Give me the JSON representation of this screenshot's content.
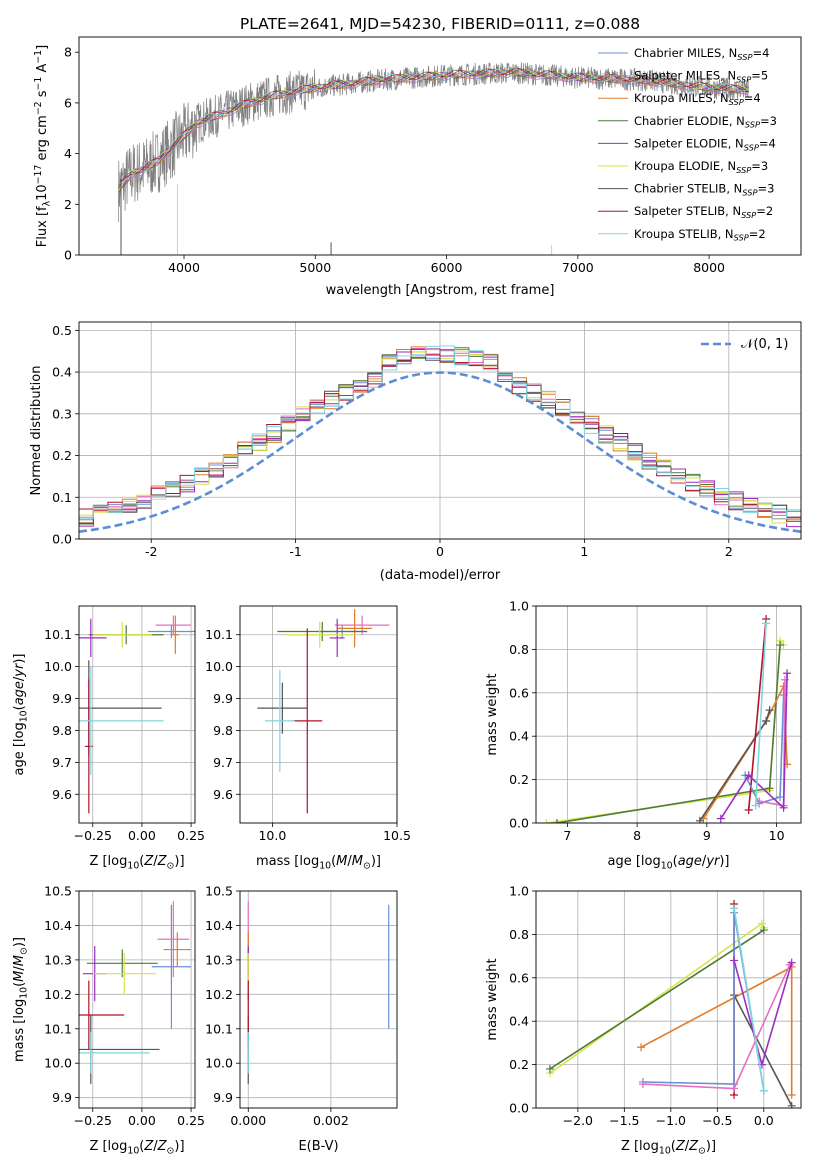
{
  "figure_title": "PLATE=2641, MJD=54230, FIBERID=0111, z=0.088",
  "colors": {
    "chabrier_miles": "#6a8fd8",
    "salpeter_miles": "#e66fbf",
    "kroupa_miles": "#e07b2a",
    "chabrier_elodie": "#4e7a3a",
    "salpeter_elodie": "#9b2fc0",
    "kroupa_elodie": "#d7e34a",
    "chabrier_stelib": "#555555",
    "salpeter_stelib": "#b0122a",
    "kroupa_stelib": "#7fd6de",
    "data": "#808080",
    "normal_curve": "#5b8ed6"
  },
  "chart_data": [
    {
      "id": "spectrum",
      "type": "line",
      "title": "PLATE=2641, MJD=54230, FIBERID=0111, z=0.088",
      "xlabel": "wavelength [Angstrom, rest frame]",
      "ylabel": "Flux [fλ10⁻¹⁷ erg cm⁻² s⁻¹ A⁻¹]",
      "xlim": [
        3200,
        8700
      ],
      "ylim": [
        0,
        8.6
      ],
      "xticks": [
        4000,
        5000,
        6000,
        7000,
        8000
      ],
      "yticks": [
        0,
        2,
        4,
        6,
        8
      ],
      "legend_position": "right",
      "legend": [
        {
          "label": "Chabrier MILES, N",
          "sub": "SSP",
          "tail": "=4"
        },
        {
          "label": "Salpeter MILES, N",
          "sub": "SSP",
          "tail": "=5"
        },
        {
          "label": "Kroupa MILES, N",
          "sub": "SSP",
          "tail": "=4"
        },
        {
          "label": "Chabrier ELODIE, N",
          "sub": "SSP",
          "tail": "=3"
        },
        {
          "label": "Salpeter ELODIE, N",
          "sub": "SSP",
          "tail": "=4"
        },
        {
          "label": "Kroupa ELODIE, N",
          "sub": "SSP",
          "tail": "=3"
        },
        {
          "label": "Chabrier STELIB, N",
          "sub": "SSP",
          "tail": "=3"
        },
        {
          "label": "Salpeter STELIB, N",
          "sub": "SSP",
          "tail": "=2"
        },
        {
          "label": "Kroupa STELIB, N",
          "sub": "SSP",
          "tail": "=2"
        }
      ],
      "continuum": [
        [
          3500,
          2.6
        ],
        [
          3600,
          3.2
        ],
        [
          3700,
          3.4
        ],
        [
          3800,
          3.7
        ],
        [
          3900,
          4.2
        ],
        [
          4000,
          4.7
        ],
        [
          4100,
          5.2
        ],
        [
          4300,
          5.6
        ],
        [
          4500,
          6.0
        ],
        [
          4700,
          6.3
        ],
        [
          5000,
          6.6
        ],
        [
          5500,
          6.9
        ],
        [
          6000,
          7.1
        ],
        [
          6500,
          7.2
        ],
        [
          7000,
          7.0
        ],
        [
          7500,
          6.9
        ],
        [
          8000,
          6.6
        ],
        [
          8300,
          6.5
        ]
      ]
    },
    {
      "id": "residuals",
      "type": "line",
      "xlabel": "(data-model)/error",
      "ylabel": "Normed distribution",
      "xlim": [
        -2.5,
        2.5
      ],
      "ylim": [
        0,
        0.52
      ],
      "xticks": [
        -2,
        -1,
        0,
        1,
        2
      ],
      "yticks": [
        0.0,
        0.1,
        0.2,
        0.3,
        0.4,
        0.5
      ],
      "grid": true,
      "legend_position": "top-right",
      "normal_label": "𝒩(0, 1)"
    },
    {
      "id": "age_vs_Z",
      "type": "scatter",
      "xlabel": "Z [log₁₀(Z/Z⊙)]",
      "ylabel": "age  [log₁₀(age/yr)]",
      "xlim": [
        -0.32,
        0.27
      ],
      "ylim": [
        9.51,
        10.19
      ],
      "xticks": [
        -0.25,
        0.0,
        0.25
      ],
      "xticklabels": [
        "−0.25",
        "0.00",
        "0.25"
      ],
      "yticks": [
        9.6,
        9.7,
        9.8,
        9.9,
        10.0,
        10.1
      ],
      "grid": true,
      "points": [
        {
          "model": "chabrier_miles",
          "x": 0.15,
          "y": 10.11,
          "xerr": 0.12,
          "yerr": 0.02
        },
        {
          "model": "salpeter_miles",
          "x": 0.16,
          "y": 10.13,
          "xerr": 0.09,
          "yerr": 0.03
        },
        {
          "model": "kroupa_miles",
          "x": 0.17,
          "y": 10.1,
          "xerr": 0.02,
          "yerr": 0.06
        },
        {
          "model": "chabrier_elodie",
          "x": -0.08,
          "y": 10.1,
          "xerr": 0.19,
          "yerr": 0.03
        },
        {
          "model": "salpeter_elodie",
          "x": -0.26,
          "y": 10.09,
          "xerr": 0.08,
          "yerr": 0.06
        },
        {
          "model": "kroupa_elodie",
          "x": -0.1,
          "y": 10.1,
          "xerr": 0.15,
          "yerr": 0.04
        },
        {
          "model": "chabrier_stelib",
          "x": -0.27,
          "y": 9.87,
          "xerr": 0.37,
          "yerr": 0.15
        },
        {
          "model": "salpeter_stelib",
          "x": -0.27,
          "y": 9.75,
          "xerr": 0.02,
          "yerr": 0.21
        },
        {
          "model": "kroupa_stelib",
          "x": -0.26,
          "y": 9.83,
          "xerr": 0.37,
          "yerr": 0.17
        }
      ]
    },
    {
      "id": "age_vs_mass",
      "type": "scatter",
      "xlabel": "mass [log₁₀(M/M⊙)]",
      "xlim": [
        9.87,
        10.5
      ],
      "ylim": [
        9.51,
        10.19
      ],
      "xticks": [
        10.0,
        10.5
      ],
      "xticklabels": [
        "10.0",
        "10.5"
      ],
      "yticks": [
        9.6,
        9.7,
        9.8,
        9.9,
        10.0,
        10.1
      ],
      "grid": true,
      "points": [
        {
          "model": "chabrier_miles",
          "x": 10.28,
          "y": 10.11,
          "xerr": 0.1,
          "yerr": 0.02
        },
        {
          "model": "salpeter_miles",
          "x": 10.36,
          "y": 10.13,
          "xerr": 0.11,
          "yerr": 0.03
        },
        {
          "model": "kroupa_miles",
          "x": 10.33,
          "y": 10.12,
          "xerr": 0.07,
          "yerr": 0.06
        },
        {
          "model": "chabrier_elodie",
          "x": 10.2,
          "y": 10.11,
          "xerr": 0.18,
          "yerr": 0.03
        },
        {
          "model": "salpeter_elodie",
          "x": 10.26,
          "y": 10.09,
          "xerr": 0.03,
          "yerr": 0.06
        },
        {
          "model": "kroupa_elodie",
          "x": 10.19,
          "y": 10.1,
          "xerr": 0.14,
          "yerr": 0.04
        },
        {
          "model": "chabrier_stelib",
          "x": 10.04,
          "y": 9.87,
          "xerr": 0.1,
          "yerr": 0.08
        },
        {
          "model": "salpeter_stelib",
          "x": 10.14,
          "y": 9.83,
          "xerr": 0.06,
          "yerr": 0.29
        },
        {
          "model": "kroupa_stelib",
          "x": 10.03,
          "y": 9.83,
          "xerr": 0.06,
          "yerr": 0.16
        }
      ]
    },
    {
      "id": "weight_vs_age",
      "type": "line",
      "xlabel": "age  [log₁₀(age/yr)]",
      "ylabel": "mass weight",
      "xlim": [
        6.55,
        10.35
      ],
      "ylim": [
        0,
        1.0
      ],
      "xticks": [
        7,
        8,
        9,
        10
      ],
      "yticks": [
        0.0,
        0.2,
        0.4,
        0.6,
        0.8,
        1.0
      ],
      "grid": true,
      "series": [
        {
          "model": "kroupa_elodie",
          "x": [
            6.7,
            9.9,
            10.05,
            10.1
          ],
          "y": [
            0.0,
            0.15,
            0.84,
            0.82
          ]
        },
        {
          "model": "chabrier_elodie",
          "x": [
            6.85,
            9.9,
            10.05
          ],
          "y": [
            0.0,
            0.16,
            0.82
          ]
        },
        {
          "model": "kroupa_miles",
          "x": [
            8.95,
            9.85,
            10.1,
            10.15
          ],
          "y": [
            0.02,
            0.47,
            0.63,
            0.27
          ]
        },
        {
          "model": "chabrier_stelib",
          "x": [
            8.9,
            9.85,
            9.9
          ],
          "y": [
            0.01,
            0.47,
            0.52
          ]
        },
        {
          "model": "salpeter_stelib",
          "x": [
            9.6,
            9.85
          ],
          "y": [
            0.06,
            0.94
          ]
        },
        {
          "model": "chabrier_miles",
          "x": [
            9.55,
            9.75,
            10.05,
            10.1
          ],
          "y": [
            0.22,
            0.09,
            0.12,
            0.59
          ]
        },
        {
          "model": "salpeter_miles",
          "x": [
            9.75,
            10.1,
            10.12
          ],
          "y": [
            0.1,
            0.08,
            0.66
          ]
        },
        {
          "model": "salpeter_elodie",
          "x": [
            9.2,
            9.6,
            10.1,
            10.15
          ],
          "y": [
            0.02,
            0.22,
            0.07,
            0.69
          ]
        },
        {
          "model": "kroupa_stelib",
          "x": [
            9.85,
            9.7
          ],
          "y": [
            0.92,
            0.08
          ]
        }
      ]
    },
    {
      "id": "mass_vs_Z",
      "type": "scatter",
      "xlabel": "Z [log₁₀(Z/Z⊙)]",
      "ylabel": "mass [log₁₀(M/M⊙)]",
      "xlim": [
        -0.32,
        0.27
      ],
      "ylim": [
        9.87,
        10.5
      ],
      "xticks": [
        -0.25,
        0.0,
        0.25
      ],
      "xticklabels": [
        "−0.25",
        "0.00",
        "0.25"
      ],
      "yticks": [
        9.9,
        10.0,
        10.1,
        10.2,
        10.3,
        10.4,
        10.5
      ],
      "grid": true,
      "points": [
        {
          "model": "chabrier_miles",
          "x": 0.15,
          "y": 10.28,
          "xerr": 0.1,
          "yerr": 0.18
        },
        {
          "model": "salpeter_miles",
          "x": 0.16,
          "y": 10.36,
          "xerr": 0.08,
          "yerr": 0.11
        },
        {
          "model": "kroupa_miles",
          "x": 0.18,
          "y": 10.33,
          "xerr": 0.07,
          "yerr": 0.05
        },
        {
          "model": "chabrier_elodie",
          "x": -0.1,
          "y": 10.29,
          "xerr": 0.18,
          "yerr": 0.04
        },
        {
          "model": "salpeter_elodie",
          "x": -0.24,
          "y": 10.26,
          "xerr": 0.06,
          "yerr": 0.08
        },
        {
          "model": "kroupa_elodie",
          "x": -0.09,
          "y": 10.26,
          "xerr": 0.16,
          "yerr": 0.06
        },
        {
          "model": "chabrier_stelib",
          "x": -0.26,
          "y": 10.04,
          "xerr": 0.35,
          "yerr": 0.1
        },
        {
          "model": "salpeter_stelib",
          "x": -0.27,
          "y": 10.14,
          "xerr": 0.18,
          "yerr": 0.1
        },
        {
          "model": "kroupa_stelib",
          "x": -0.26,
          "y": 10.03,
          "xerr": 0.3,
          "yerr": 0.06
        }
      ]
    },
    {
      "id": "mass_vs_ebv",
      "type": "scatter",
      "xlabel": "E(B-V)",
      "xlim": [
        -0.0002,
        0.0036
      ],
      "ylim": [
        9.87,
        10.5
      ],
      "xticks": [
        0.0,
        0.002
      ],
      "xticklabels": [
        "0.000",
        "0.002"
      ],
      "yticks": [
        9.9,
        10.0,
        10.1,
        10.2,
        10.3,
        10.4,
        10.5
      ],
      "grid": true,
      "points": [
        {
          "model": "chabrier_miles",
          "x": 0.0034,
          "y": 10.28,
          "xerr": 0.0,
          "yerr": 0.18
        },
        {
          "model": "salpeter_miles",
          "x": 0.0,
          "y": 10.36,
          "xerr": 0.0,
          "yerr": 0.11
        },
        {
          "model": "kroupa_miles",
          "x": 0.0,
          "y": 10.33,
          "xerr": 0.0,
          "yerr": 0.05
        },
        {
          "model": "chabrier_elodie",
          "x": 0.0,
          "y": 10.29,
          "xerr": 0.0,
          "yerr": 0.04
        },
        {
          "model": "salpeter_elodie",
          "x": 0.0,
          "y": 10.26,
          "xerr": 0.0,
          "yerr": 0.08
        },
        {
          "model": "kroupa_elodie",
          "x": 0.0,
          "y": 10.26,
          "xerr": 0.0,
          "yerr": 0.06
        },
        {
          "model": "chabrier_stelib",
          "x": 0.0,
          "y": 10.04,
          "xerr": 0.0,
          "yerr": 0.1
        },
        {
          "model": "salpeter_stelib",
          "x": 0.0,
          "y": 10.14,
          "xerr": 0.0,
          "yerr": 0.1
        },
        {
          "model": "kroupa_stelib",
          "x": 0.0,
          "y": 10.03,
          "xerr": 0.0,
          "yerr": 0.06
        }
      ]
    },
    {
      "id": "weight_vs_Z",
      "type": "line",
      "xlabel": "Z [log₁₀(Z/Z⊙)]",
      "ylabel": "mass weight",
      "xlim": [
        -2.45,
        0.4
      ],
      "ylim": [
        0,
        1.0
      ],
      "xticks": [
        -2.0,
        -1.5,
        -1.0,
        -0.5,
        0.0
      ],
      "xticklabels": [
        "−2.0",
        "−1.5",
        "−1.0",
        "−0.5",
        "0.0"
      ],
      "yticks": [
        0.0,
        0.2,
        0.4,
        0.6,
        0.8,
        1.0
      ],
      "grid": true,
      "series": [
        {
          "model": "kroupa_elodie",
          "x": [
            -2.3,
            -0.02,
            0.0
          ],
          "y": [
            0.16,
            0.85,
            0.83
          ]
        },
        {
          "model": "chabrier_elodie",
          "x": [
            -2.3,
            0.0
          ],
          "y": [
            0.18,
            0.82
          ]
        },
        {
          "model": "kroupa_miles",
          "x": [
            -1.32,
            0.3,
            0.3
          ],
          "y": [
            0.28,
            0.65,
            0.06
          ]
        },
        {
          "model": "chabrier_stelib",
          "x": [
            -0.32,
            0.3
          ],
          "y": [
            0.52,
            0.01
          ]
        },
        {
          "model": "salpeter_stelib",
          "x": [
            -0.32,
            -0.32
          ],
          "y": [
            0.94,
            0.06
          ]
        },
        {
          "model": "chabrier_miles",
          "x": [
            -1.3,
            -0.32,
            -0.32,
            0.0
          ],
          "y": [
            0.12,
            0.11,
            0.9,
            0.08
          ]
        },
        {
          "model": "salpeter_miles",
          "x": [
            -1.3,
            -0.32,
            0.28
          ],
          "y": [
            0.11,
            0.09,
            0.66
          ]
        },
        {
          "model": "salpeter_elodie",
          "x": [
            -0.32,
            -0.02,
            0.3
          ],
          "y": [
            0.68,
            0.2,
            0.67
          ]
        },
        {
          "model": "kroupa_stelib",
          "x": [
            -0.32,
            0.0
          ],
          "y": [
            0.92,
            0.08
          ]
        }
      ]
    }
  ]
}
